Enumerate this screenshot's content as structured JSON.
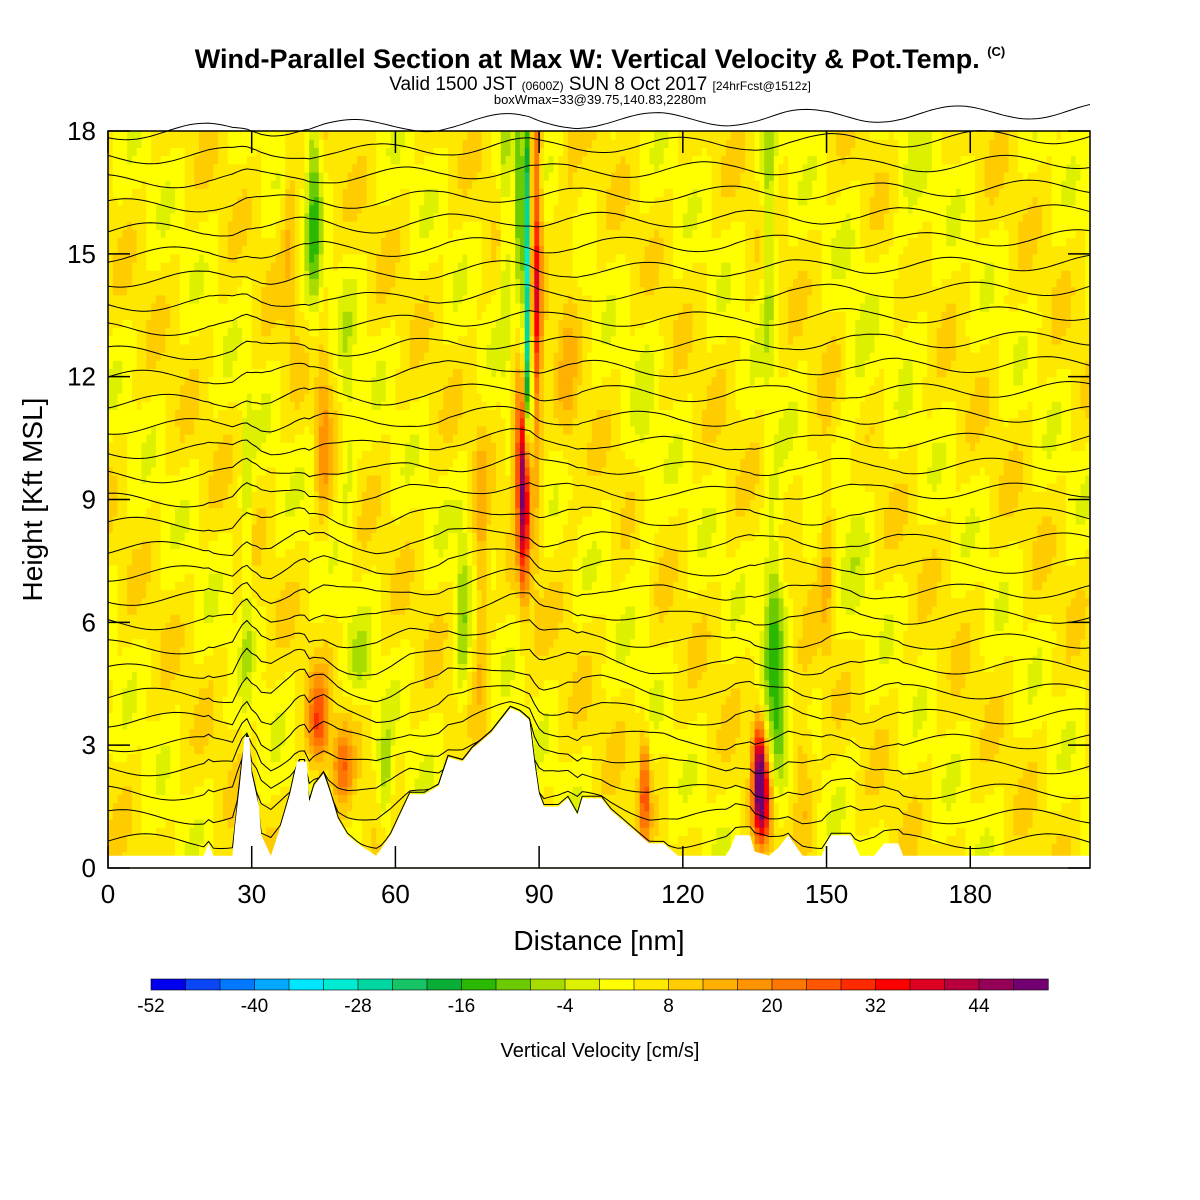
{
  "title_main": "Wind-Parallel Section at Max W: Vertical Velocity & Pot.Temp.",
  "title_mark": "(C)",
  "subtitle_a": "Valid 1500 JST",
  "subtitle_b": "(0600Z)",
  "subtitle_c": "SUN 8 Oct 2017",
  "subtitle_d": "[24hrFcst@1512z]",
  "subtitle2": "boxWmax=33@39.75,140.83,2280m",
  "chart_data": {
    "type": "heatmap",
    "xlabel": "Distance [nm]",
    "ylabel": "Height [Kft MSL]",
    "xlim": [
      0,
      205
    ],
    "ylim": [
      0,
      18
    ],
    "x_ticks": [
      0,
      30,
      60,
      90,
      120,
      150,
      180
    ],
    "y_ticks": [
      0,
      3,
      6,
      9,
      12,
      15,
      18
    ],
    "colorbar": {
      "label": "Vertical Velocity [cm/s]",
      "tick_labels": [
        "-52",
        "-40",
        "-28",
        "-16",
        "-4",
        "8",
        "20",
        "32",
        "44"
      ],
      "levels": [
        -52,
        -48,
        -44,
        -40,
        -36,
        -32,
        -28,
        -24,
        -20,
        -16,
        -12,
        -8,
        -4,
        0,
        4,
        8,
        12,
        16,
        20,
        24,
        28,
        32,
        36,
        40,
        44,
        48,
        52
      ],
      "colors": [
        "#0000ee",
        "#0a46f5",
        "#0078ff",
        "#00a8ff",
        "#00e6ff",
        "#00ecd2",
        "#00d7a0",
        "#16c466",
        "#0aae36",
        "#2ab800",
        "#6cca00",
        "#a8dc00",
        "#dcf000",
        "#ffff00",
        "#ffe800",
        "#ffcc00",
        "#ffb000",
        "#ff9400",
        "#ff7600",
        "#ff5500",
        "#ff2a00",
        "#ff0000",
        "#dd0022",
        "#b8003e",
        "#950058",
        "#720070"
      ]
    },
    "terrain_profile": [
      [
        0,
        0.3
      ],
      [
        20,
        0.3
      ],
      [
        21,
        0.6
      ],
      [
        22,
        0.3
      ],
      [
        26,
        0.3
      ],
      [
        26.5,
        1
      ],
      [
        27.5,
        2
      ],
      [
        28.5,
        3.2
      ],
      [
        29.5,
        3.2
      ],
      [
        30,
        2.3
      ],
      [
        31.5,
        1.5
      ],
      [
        32,
        0.8
      ],
      [
        34,
        0.3
      ],
      [
        36,
        1
      ],
      [
        38,
        1.8
      ],
      [
        39.5,
        2.6
      ],
      [
        41.5,
        2.6
      ],
      [
        42,
        1.6
      ],
      [
        43,
        2
      ],
      [
        45,
        2.3
      ],
      [
        46.5,
        1.8
      ],
      [
        48,
        1.2
      ],
      [
        50,
        0.8
      ],
      [
        52,
        0.6
      ],
      [
        56,
        0.3
      ],
      [
        59,
        0.8
      ],
      [
        61,
        1.3
      ],
      [
        63,
        1.8
      ],
      [
        66,
        1.8
      ],
      [
        69,
        2
      ],
      [
        71,
        2.7
      ],
      [
        74,
        2.6
      ],
      [
        76,
        2.9
      ],
      [
        78,
        3.1
      ],
      [
        80,
        3.3
      ],
      [
        82,
        3.6
      ],
      [
        84,
        3.9
      ],
      [
        86,
        3.8
      ],
      [
        88,
        3.6
      ],
      [
        89,
        2.6
      ],
      [
        90,
        1.8
      ],
      [
        91,
        1.5
      ],
      [
        94,
        1.5
      ],
      [
        96,
        1.7
      ],
      [
        98,
        1.3
      ],
      [
        99,
        1.7
      ],
      [
        103,
        1.7
      ],
      [
        105,
        1.4
      ],
      [
        107,
        1.2
      ],
      [
        110,
        0.9
      ],
      [
        113,
        0.6
      ],
      [
        116,
        0.6
      ],
      [
        119,
        0.3
      ],
      [
        129,
        0.3
      ],
      [
        130,
        0.5
      ],
      [
        131,
        0.8
      ],
      [
        134,
        0.8
      ],
      [
        135,
        0.4
      ],
      [
        138,
        0.3
      ],
      [
        140,
        0.5
      ],
      [
        142,
        0.8
      ],
      [
        145,
        0.3
      ],
      [
        149,
        0.3
      ],
      [
        150,
        0.6
      ],
      [
        151,
        0.8
      ],
      [
        155,
        0.8
      ],
      [
        157,
        0.3
      ],
      [
        160,
        0.3
      ],
      [
        162,
        0.6
      ],
      [
        165,
        0.6
      ],
      [
        166,
        0.3
      ],
      [
        205,
        0.3
      ]
    ],
    "anomalies": [
      {
        "x": 87.5,
        "y": 15.5,
        "sx": 0.7,
        "sy": 2.6,
        "w": -32
      },
      {
        "x": 87.8,
        "y": 12.5,
        "sx": 0.6,
        "sy": 1.6,
        "w": -26
      },
      {
        "x": 89.2,
        "y": 14.5,
        "sx": 0.9,
        "sy": 3.4,
        "w": 30
      },
      {
        "x": 86.8,
        "y": 9.0,
        "sx": 0.8,
        "sy": 1.6,
        "w": 36
      },
      {
        "x": 86.0,
        "y": 10.5,
        "sx": 1.0,
        "sy": 1.3,
        "w": 20
      },
      {
        "x": 85.5,
        "y": 16.5,
        "sx": 0.6,
        "sy": 2.0,
        "w": -16
      },
      {
        "x": 136,
        "y": 2.3,
        "sx": 1.0,
        "sy": 0.9,
        "w": 44
      },
      {
        "x": 137,
        "y": 1.4,
        "sx": 1.2,
        "sy": 0.7,
        "w": 20
      },
      {
        "x": 139,
        "y": 6.0,
        "sx": 1.5,
        "sy": 2.0,
        "w": -16
      },
      {
        "x": 138,
        "y": 16.0,
        "sx": 1.0,
        "sy": 2.5,
        "w": -12
      },
      {
        "x": 140,
        "y": 3.0,
        "sx": 1.3,
        "sy": 0.9,
        "w": -12
      },
      {
        "x": 112,
        "y": 2.0,
        "sx": 0.8,
        "sy": 1.0,
        "w": 22
      },
      {
        "x": 145,
        "y": 2.5,
        "sx": 1.5,
        "sy": 1.2,
        "w": 10
      },
      {
        "x": 43,
        "y": 16.5,
        "sx": 1.1,
        "sy": 2.3,
        "w": -16
      },
      {
        "x": 45,
        "y": 10.5,
        "sx": 1.1,
        "sy": 1.6,
        "w": 12
      },
      {
        "x": 50,
        "y": 11.0,
        "sx": 1.2,
        "sy": 2.0,
        "w": -8
      },
      {
        "x": 44,
        "y": 3.5,
        "sx": 1.5,
        "sy": 0.8,
        "w": 22
      },
      {
        "x": 49,
        "y": 2.5,
        "sx": 1.4,
        "sy": 0.7,
        "w": 16
      },
      {
        "x": 58,
        "y": 2.0,
        "sx": 1.0,
        "sy": 1.0,
        "w": -12
      },
      {
        "x": 53,
        "y": 5.0,
        "sx": 1.8,
        "sy": 0.6,
        "w": -8
      },
      {
        "x": 74,
        "y": 6.0,
        "sx": 1.0,
        "sy": 2.0,
        "w": -10
      },
      {
        "x": 78,
        "y": 7.0,
        "sx": 1.0,
        "sy": 2.5,
        "w": 10
      },
      {
        "x": 29,
        "y": 8.0,
        "sx": 0.8,
        "sy": 3.0,
        "w": -8
      },
      {
        "x": 38,
        "y": 16.0,
        "sx": 1.2,
        "sy": 2.0,
        "w": 8
      },
      {
        "x": 83,
        "y": 16.0,
        "sx": 0.8,
        "sy": 2.5,
        "w": -10
      },
      {
        "x": 96,
        "y": 13.0,
        "sx": 1.5,
        "sy": 3.0,
        "w": 6
      },
      {
        "x": 112,
        "y": 9.0,
        "sx": 1.5,
        "sy": 3.0,
        "w": -4
      },
      {
        "x": 156,
        "y": 10.0,
        "sx": 2.0,
        "sy": 4.0,
        "w": -4
      },
      {
        "x": 168,
        "y": 16.0,
        "sx": 3.0,
        "sy": 2.0,
        "w": -4
      },
      {
        "x": 150,
        "y": 8.0,
        "sx": 1.0,
        "sy": 2.0,
        "w": 8
      }
    ],
    "isentropes_count": 30
  }
}
